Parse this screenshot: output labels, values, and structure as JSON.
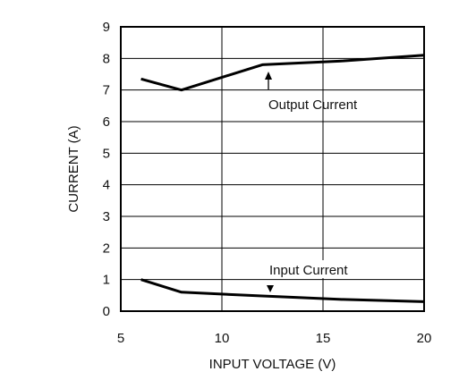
{
  "chart_data": {
    "type": "line",
    "xlabel": "INPUT VOLTAGE (V)",
    "ylabel": "CURRENT (A)",
    "xlim": [
      5,
      20
    ],
    "ylim": [
      0,
      9
    ],
    "x_ticks": [
      "5",
      "10",
      "15",
      "20"
    ],
    "y_ticks": [
      "0",
      "1",
      "2",
      "3",
      "4",
      "5",
      "6",
      "7",
      "8",
      "9"
    ],
    "grid": true,
    "series": [
      {
        "name": "Output Current",
        "x": [
          6,
          8,
          12,
          16,
          20
        ],
        "y": [
          7.35,
          7.0,
          7.8,
          7.92,
          8.1
        ]
      },
      {
        "name": "Input Current",
        "x": [
          6,
          8,
          12,
          16,
          20
        ],
        "y": [
          1.0,
          0.6,
          0.48,
          0.37,
          0.3
        ]
      }
    ],
    "annotations": [
      {
        "text": "Output Current",
        "series": 0,
        "x": 12.2,
        "y": 7.6,
        "arrow": "up"
      },
      {
        "text": "Input Current",
        "series": 1,
        "x": 12.2,
        "y": 0.55,
        "arrow": "down"
      }
    ]
  }
}
